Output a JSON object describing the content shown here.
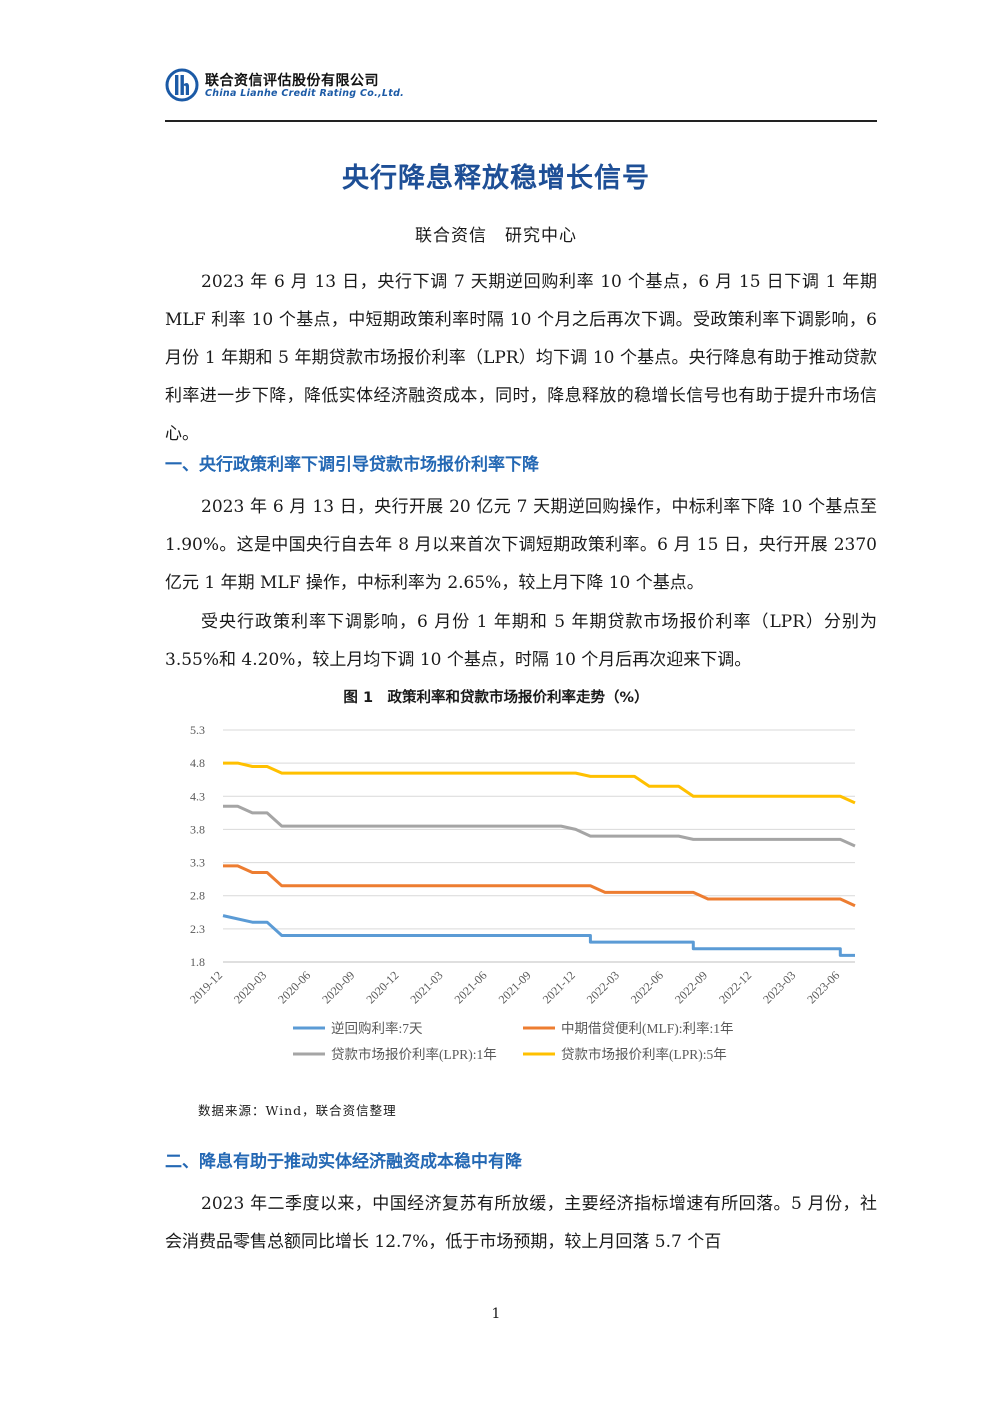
{
  "header": {
    "company_cn": "联合资信评估股份有限公司",
    "company_en": "China Lianhe Credit Rating Co.,Ltd.",
    "logo_icon": "lianhe-logo-icon",
    "brand_color": "#1b5aa6"
  },
  "title": "央行降息释放稳增长信号",
  "author": "联合资信　研究中心",
  "paragraphs": {
    "p1": "2023 年 6 月 13 日，央行下调 7 天期逆回购利率 10 个基点，6 月 15 日下调 1 年期 MLF 利率 10 个基点，中短期政策利率时隔 10 个月之后再次下调。受政策利率下调影响，6 月份 1 年期和 5 年期贷款市场报价利率（LPR）均下调 10 个基点。央行降息有助于推动贷款利率进一步下降，降低实体经济融资成本，同时，降息释放的稳增长信号也有助于提升市场信心。",
    "h1": "一、央行政策利率下调引导贷款市场报价利率下降",
    "p2": "2023 年 6 月 13 日，央行开展 20 亿元 7 天期逆回购操作，中标利率下降 10 个基点至 1.90%。这是中国央行自去年 8 月以来首次下调短期政策利率。6 月 15 日，央行开展 2370 亿元 1 年期 MLF 操作，中标利率为 2.65%，较上月下降 10 个基点。",
    "p3": "受央行政策利率下调影响，6 月份 1 年期和 5 年期贷款市场报价利率（LPR）分别为 3.55%和 4.20%，较上月均下调 10 个基点，时隔 10 个月后再次迎来下调。",
    "h2": "二、降息有助于推动实体经济融资成本稳中有降",
    "p4": "2023 年二季度以来，中国经济复苏有所放缓，主要经济指标增速有所回落。5 月份，社会消费品零售总额同比增长 12.7%，低于市场预期，较上月回落 5.7 个百"
  },
  "figure": {
    "title": "图 1　政策利率和贷款市场报价利率走势（%）",
    "source": "数据来源：Wind，联合资信整理"
  },
  "chart_data": {
    "type": "line",
    "title": "图 1　政策利率和贷款市场报价利率走势（%）",
    "xlabel": "",
    "ylabel": "",
    "ylim": [
      1.8,
      5.3
    ],
    "yticks": [
      "1.8",
      "2.3",
      "2.8",
      "3.3",
      "3.8",
      "4.3",
      "4.8",
      "5.3"
    ],
    "xlim": [
      "2019-12",
      "2023-07"
    ],
    "xticks": [
      "2019-12",
      "2020-03",
      "2020-06",
      "2020-09",
      "2020-12",
      "2021-03",
      "2021-06",
      "2021-09",
      "2021-12",
      "2022-03",
      "2022-06",
      "2022-09",
      "2022-12",
      "2023-03",
      "2023-06"
    ],
    "grid": "horizontal",
    "legend_position": "bottom",
    "series": [
      {
        "name": "逆回购利率:7天",
        "color": "#5b9bd5",
        "points": [
          [
            "2019-12",
            2.5
          ],
          [
            "2020-02",
            2.4
          ],
          [
            "2020-03",
            2.4
          ],
          [
            "2020-04",
            2.2
          ],
          [
            "2022-01",
            2.2
          ],
          [
            "2022-01",
            2.1
          ],
          [
            "2022-08",
            2.1
          ],
          [
            "2022-08",
            2.0
          ],
          [
            "2023-06",
            2.0
          ],
          [
            "2023-06",
            1.9
          ],
          [
            "2023-07",
            1.9
          ]
        ]
      },
      {
        "name": "中期借贷便利(MLF):利率:1年",
        "color": "#ed7d31",
        "points": [
          [
            "2019-12",
            3.25
          ],
          [
            "2020-01",
            3.25
          ],
          [
            "2020-02",
            3.15
          ],
          [
            "2020-03",
            3.15
          ],
          [
            "2020-04",
            2.95
          ],
          [
            "2022-01",
            2.95
          ],
          [
            "2022-02",
            2.85
          ],
          [
            "2022-08",
            2.85
          ],
          [
            "2022-09",
            2.75
          ],
          [
            "2023-06",
            2.75
          ],
          [
            "2023-07",
            2.65
          ]
        ]
      },
      {
        "name": "贷款市场报价利率(LPR):1年",
        "color": "#a5a5a5",
        "points": [
          [
            "2019-12",
            4.15
          ],
          [
            "2020-01",
            4.15
          ],
          [
            "2020-02",
            4.05
          ],
          [
            "2020-03",
            4.05
          ],
          [
            "2020-04",
            3.85
          ],
          [
            "2021-11",
            3.85
          ],
          [
            "2021-12",
            3.8
          ],
          [
            "2022-01",
            3.7
          ],
          [
            "2022-07",
            3.7
          ],
          [
            "2022-08",
            3.65
          ],
          [
            "2023-06",
            3.65
          ],
          [
            "2023-07",
            3.55
          ]
        ]
      },
      {
        "name": "贷款市场报价利率(LPR):5年",
        "color": "#ffc000",
        "points": [
          [
            "2019-12",
            4.8
          ],
          [
            "2020-01",
            4.8
          ],
          [
            "2020-02",
            4.75
          ],
          [
            "2020-03",
            4.75
          ],
          [
            "2020-04",
            4.65
          ],
          [
            "2021-12",
            4.65
          ],
          [
            "2022-01",
            4.6
          ],
          [
            "2022-04",
            4.6
          ],
          [
            "2022-05",
            4.45
          ],
          [
            "2022-07",
            4.45
          ],
          [
            "2022-08",
            4.3
          ],
          [
            "2023-06",
            4.3
          ],
          [
            "2023-07",
            4.2
          ]
        ]
      }
    ]
  },
  "page_number": "1"
}
